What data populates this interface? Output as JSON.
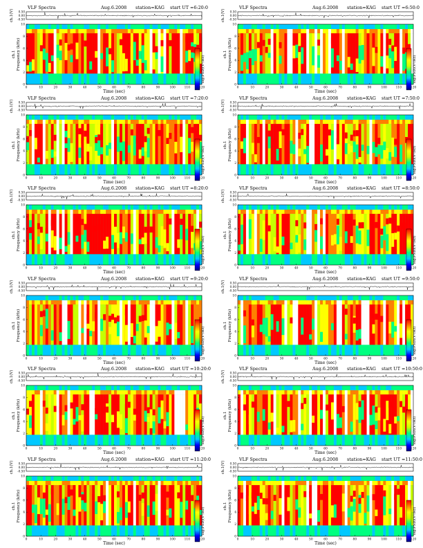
{
  "panel_common": {
    "title": "VLF Spectra",
    "date": "Aug.6.2008",
    "station": "station=KAG",
    "ch_ylabel": "ch.1(V)",
    "spec_ylabel": "Frequency (kHz)",
    "spec_ylabel_prefix": "ch.1",
    "xlabel": "Time (sec)",
    "colorbar_label": "log(PSD)(V²/Hz)",
    "ch_tick_labels": [
      "0.50",
      "0.00",
      "-0.50"
    ],
    "freq_tick_labels": [
      "0",
      "2",
      "4",
      "6",
      "8",
      "10"
    ],
    "time_tick_labels": [
      "0",
      "10",
      "20",
      "30",
      "40",
      "50",
      "60",
      "70",
      "80",
      "90",
      "100",
      "110",
      "120"
    ]
  },
  "chart_data": [
    {
      "type": "heatmap",
      "title": "VLF Spectra",
      "start_ut": "start UT =6:20:0",
      "xlabel": "Time (sec)",
      "ylabel": "Frequency (kHz)",
      "xlim": [
        0,
        120
      ],
      "ylim": [
        0,
        10
      ],
      "waveform_ylim": [
        -0.5,
        0.5
      ],
      "colorscale": [
        "#000080",
        "#0000ff",
        "#00c8ff",
        "#00ff80",
        "#c8ff00",
        "#ffff00",
        "#ff8000",
        "#ff0000",
        "#ffffff"
      ]
    },
    {
      "type": "heatmap",
      "title": "VLF Spectra",
      "start_ut": "start UT =6:50:0",
      "xlabel": "Time (sec)",
      "ylabel": "Frequency (kHz)",
      "xlim": [
        0,
        120
      ],
      "ylim": [
        0,
        10
      ],
      "waveform_ylim": [
        -0.5,
        0.5
      ],
      "colorscale": [
        "#000080",
        "#0000ff",
        "#00c8ff",
        "#00ff80",
        "#c8ff00",
        "#ffff00",
        "#ff8000",
        "#ff0000",
        "#ffffff"
      ]
    },
    {
      "type": "heatmap",
      "title": "VLF Spectra",
      "start_ut": "start UT =7:20:0",
      "xlabel": "Time (sec)",
      "ylabel": "Frequency (kHz)",
      "xlim": [
        0,
        120
      ],
      "ylim": [
        0,
        10
      ],
      "waveform_ylim": [
        -0.5,
        0.5
      ],
      "colorscale": [
        "#000080",
        "#0000ff",
        "#00c8ff",
        "#00ff80",
        "#c8ff00",
        "#ffff00",
        "#ff8000",
        "#ff0000",
        "#ffffff"
      ]
    },
    {
      "type": "heatmap",
      "title": "VLF Spectra",
      "start_ut": "start UT =7:50:0",
      "xlabel": "Time (sec)",
      "ylabel": "Frequency (kHz)",
      "xlim": [
        0,
        120
      ],
      "ylim": [
        0,
        10
      ],
      "waveform_ylim": [
        -0.5,
        0.5
      ],
      "colorscale": [
        "#000080",
        "#0000ff",
        "#00c8ff",
        "#00ff80",
        "#c8ff00",
        "#ffff00",
        "#ff8000",
        "#ff0000",
        "#ffffff"
      ]
    },
    {
      "type": "heatmap",
      "title": "VLF Spectra",
      "start_ut": "start UT =8:20:0",
      "xlabel": "Time (sec)",
      "ylabel": "Frequency (kHz)",
      "xlim": [
        0,
        120
      ],
      "ylim": [
        0,
        10
      ],
      "waveform_ylim": [
        -0.5,
        0.5
      ],
      "colorscale": [
        "#000080",
        "#0000ff",
        "#00c8ff",
        "#00ff80",
        "#c8ff00",
        "#ffff00",
        "#ff8000",
        "#ff0000",
        "#ffffff"
      ]
    },
    {
      "type": "heatmap",
      "title": "VLF Spectra",
      "start_ut": "start UT =8:50:0",
      "xlabel": "Time (sec)",
      "ylabel": "Frequency (kHz)",
      "xlim": [
        0,
        120
      ],
      "ylim": [
        0,
        10
      ],
      "waveform_ylim": [
        -0.5,
        0.5
      ],
      "colorscale": [
        "#000080",
        "#0000ff",
        "#00c8ff",
        "#00ff80",
        "#c8ff00",
        "#ffff00",
        "#ff8000",
        "#ff0000",
        "#ffffff"
      ]
    },
    {
      "type": "heatmap",
      "title": "VLF Spectra",
      "start_ut": "start UT =9:20:0",
      "xlabel": "Time (sec)",
      "ylabel": "Frequency (kHz)",
      "xlim": [
        0,
        120
      ],
      "ylim": [
        0,
        10
      ],
      "waveform_ylim": [
        -0.5,
        0.5
      ],
      "colorscale": [
        "#000080",
        "#0000ff",
        "#00c8ff",
        "#00ff80",
        "#c8ff00",
        "#ffff00",
        "#ff8000",
        "#ff0000",
        "#ffffff"
      ]
    },
    {
      "type": "heatmap",
      "title": "VLF Spectra",
      "start_ut": "start UT =9:50:0",
      "xlabel": "Time (sec)",
      "ylabel": "Frequency (kHz)",
      "xlim": [
        0,
        120
      ],
      "ylim": [
        0,
        10
      ],
      "waveform_ylim": [
        -0.5,
        0.5
      ],
      "colorscale": [
        "#000080",
        "#0000ff",
        "#00c8ff",
        "#00ff80",
        "#c8ff00",
        "#ffff00",
        "#ff8000",
        "#ff0000",
        "#ffffff"
      ]
    },
    {
      "type": "heatmap",
      "title": "VLF Spectra",
      "start_ut": "start UT =10:20:0",
      "xlabel": "Time (sec)",
      "ylabel": "Frequency (kHz)",
      "xlim": [
        0,
        120
      ],
      "ylim": [
        0,
        10
      ],
      "waveform_ylim": [
        -0.5,
        0.5
      ],
      "colorscale": [
        "#000080",
        "#0000ff",
        "#00c8ff",
        "#00ff80",
        "#c8ff00",
        "#ffff00",
        "#ff8000",
        "#ff0000",
        "#ffffff"
      ]
    },
    {
      "type": "heatmap",
      "title": "VLF Spectra",
      "start_ut": "start UT =10:50:0",
      "xlabel": "Time (sec)",
      "ylabel": "Frequency (kHz)",
      "xlim": [
        0,
        120
      ],
      "ylim": [
        0,
        10
      ],
      "waveform_ylim": [
        -0.5,
        0.5
      ],
      "colorscale": [
        "#000080",
        "#0000ff",
        "#00c8ff",
        "#00ff80",
        "#c8ff00",
        "#ffff00",
        "#ff8000",
        "#ff0000",
        "#ffffff"
      ]
    },
    {
      "type": "heatmap",
      "title": "VLF Spectra",
      "start_ut": "start UT =11:20:0",
      "xlabel": "Time (sec)",
      "ylabel": "Frequency (kHz)",
      "xlim": [
        0,
        120
      ],
      "ylim": [
        0,
        10
      ],
      "waveform_ylim": [
        -0.5,
        0.5
      ],
      "colorscale": [
        "#000080",
        "#0000ff",
        "#00c8ff",
        "#00ff80",
        "#c8ff00",
        "#ffff00",
        "#ff8000",
        "#ff0000",
        "#ffffff"
      ]
    },
    {
      "type": "heatmap",
      "title": "VLF Spectra",
      "start_ut": "start UT =11:50:0",
      "xlabel": "Time (sec)",
      "ylabel": "Frequency (kHz)",
      "xlim": [
        0,
        120
      ],
      "ylim": [
        0,
        10
      ],
      "waveform_ylim": [
        -0.5,
        0.5
      ],
      "colorscale": [
        "#000080",
        "#0000ff",
        "#00c8ff",
        "#00ff80",
        "#c8ff00",
        "#ffff00",
        "#ff8000",
        "#ff0000",
        "#ffffff"
      ]
    }
  ]
}
